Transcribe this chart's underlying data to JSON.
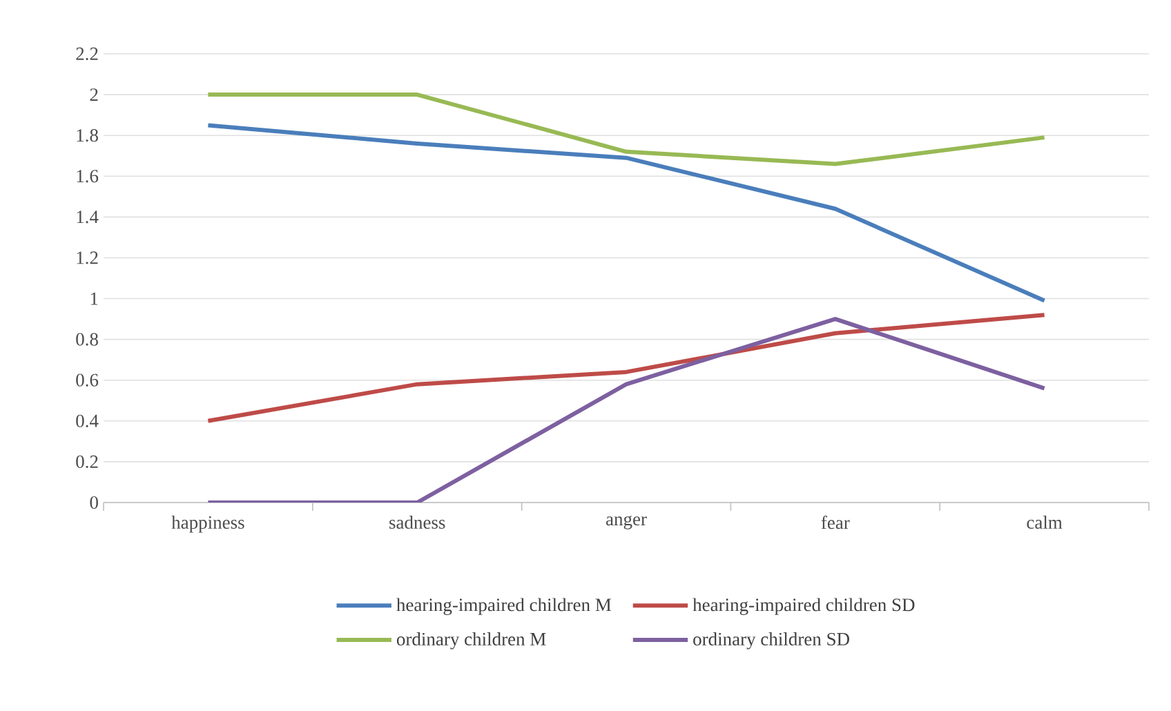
{
  "chart_data": {
    "type": "line",
    "categories": [
      "happiness",
      "sadness",
      "anger",
      "fear",
      "calm"
    ],
    "series": [
      {
        "name": "hearing-impaired children M",
        "color": "#4a7ebb",
        "values": [
          1.85,
          1.76,
          1.69,
          1.44,
          0.99
        ]
      },
      {
        "name": "hearing-impaired children SD",
        "color": "#be4b48",
        "values": [
          0.4,
          0.58,
          0.64,
          0.83,
          0.92
        ]
      },
      {
        "name": "ordinary children M",
        "color": "#98b954",
        "values": [
          2.0,
          2.0,
          1.72,
          1.66,
          1.79
        ]
      },
      {
        "name": "ordinary children SD",
        "color": "#7d60a0",
        "values": [
          0,
          0,
          0.58,
          0.9,
          0.56
        ]
      }
    ],
    "ylim": [
      0,
      2.2
    ],
    "yticks": [
      0,
      0.2,
      0.4,
      0.6,
      0.8,
      1,
      1.2,
      1.4,
      1.6,
      1.8,
      2,
      2.2
    ],
    "grid": "y",
    "legend": "bottom",
    "marker": "none",
    "line_style": "solid"
  }
}
